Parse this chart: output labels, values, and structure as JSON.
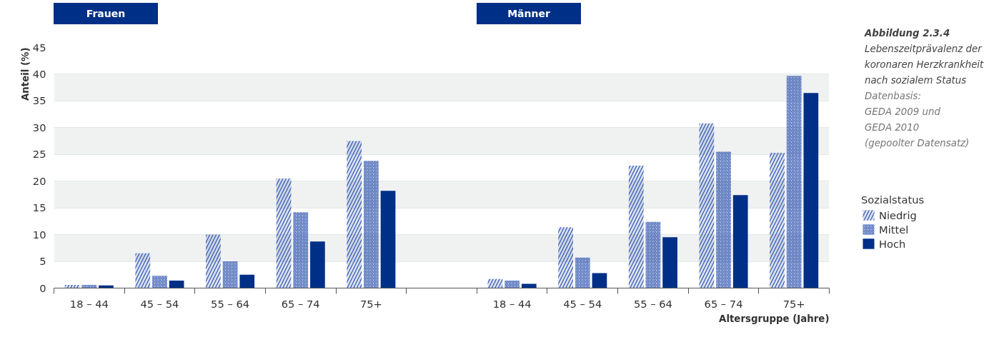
{
  "chart_data": {
    "type": "bar",
    "title": "Abbildung 2.3.4",
    "subtitle": "Lebenszeitprävalenz der\nkoronaren Herzkrankheit\nnach sozialem Status",
    "ylabel": "Anteil (%)",
    "xlabel": "Altersgruppe (Jahre)",
    "legend_title": "Sozialstatus",
    "annotations": [
      "Frauen",
      "Männer",
      "Datenbasis:\nGEDA 2009 und\nGEDA 2010\n(gepoolter Datensatz)"
    ],
    "categories": [
      "18 – 44",
      "45 – 54",
      "55 – 64",
      "65 – 74",
      "75+",
      null,
      "18 – 44",
      "45 – 54",
      "55 – 64",
      "65 – 74",
      "75+"
    ],
    "series": [
      {
        "name": "Niedrig",
        "color": "#3a5db3",
        "values": [
          0.6,
          6.5,
          10,
          20.5,
          27.5,
          null,
          1.7,
          11.4,
          22.9,
          30.8,
          25.3
        ]
      },
      {
        "name": "Mittel",
        "color": "#3a5db3",
        "values": [
          0.6,
          2.3,
          5,
          14.2,
          23.8,
          null,
          1.4,
          5.7,
          12.4,
          25.5,
          39.7
        ]
      },
      {
        "name": "Hoch",
        "color": "#002f87",
        "values": [
          0.5,
          1.4,
          2.5,
          8.7,
          18.2,
          null,
          0.8,
          2.8,
          9.5,
          17.4,
          36.5
        ]
      }
    ],
    "ylim": [
      0,
      45
    ],
    "yticks": [
      0,
      5,
      10,
      15,
      20,
      25,
      30,
      35,
      40,
      45
    ],
    "grid": "y",
    "legend": "right"
  }
}
